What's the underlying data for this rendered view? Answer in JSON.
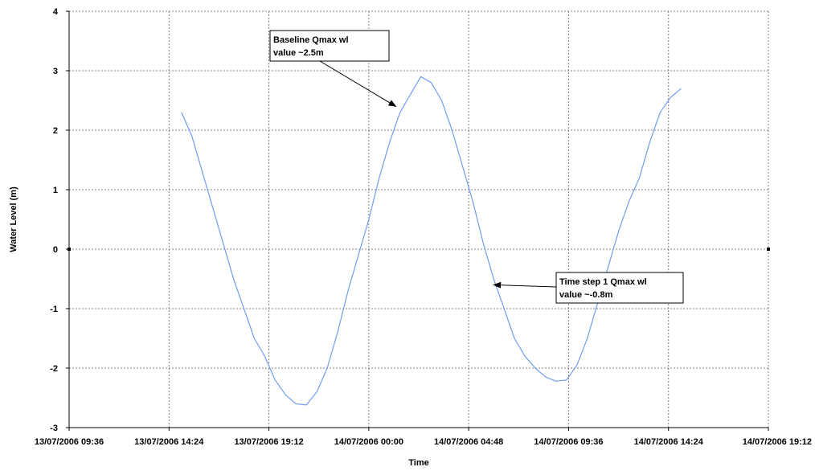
{
  "chart_data": {
    "type": "line",
    "title": "",
    "xlabel": "Time",
    "ylabel": "Water Level (m)",
    "ylim": [
      -3,
      4
    ],
    "yticks": [
      -3,
      -2,
      -1,
      0,
      1,
      2,
      3,
      4
    ],
    "xlim": [
      "13/07/2006 09:36",
      "14/07/2006 19:12"
    ],
    "xticks": [
      "13/07/2006 09:36",
      "13/07/2006 14:24",
      "13/07/2006 19:12",
      "14/07/2006 00:00",
      "14/07/2006 04:48",
      "14/07/2006 09:36",
      "14/07/2006 14:24",
      "14/07/2006 19:12"
    ],
    "grid": true,
    "line_color": "#6f9ef0",
    "series": [
      {
        "x": [
          "13/07/2006 15:00",
          "13/07/2006 15:30",
          "13/07/2006 16:00",
          "13/07/2006 16:30",
          "13/07/2006 17:00",
          "13/07/2006 17:30",
          "13/07/2006 18:00",
          "13/07/2006 18:30",
          "13/07/2006 19:00",
          "13/07/2006 19:30",
          "13/07/2006 20:00",
          "13/07/2006 20:30",
          "13/07/2006 21:00",
          "13/07/2006 21:30",
          "13/07/2006 22:00",
          "13/07/2006 22:30",
          "13/07/2006 23:00",
          "13/07/2006 23:30",
          "14/07/2006 00:00",
          "14/07/2006 00:30",
          "14/07/2006 01:00",
          "14/07/2006 01:30",
          "14/07/2006 02:00",
          "14/07/2006 02:30",
          "14/07/2006 03:00",
          "14/07/2006 03:30",
          "14/07/2006 04:00",
          "14/07/2006 04:30",
          "14/07/2006 05:00",
          "14/07/2006 05:30",
          "14/07/2006 06:00",
          "14/07/2006 06:30",
          "14/07/2006 07:00",
          "14/07/2006 07:30",
          "14/07/2006 08:00",
          "14/07/2006 08:30",
          "14/07/2006 09:00",
          "14/07/2006 09:30",
          "14/07/2006 10:00",
          "14/07/2006 10:30",
          "14/07/2006 11:00",
          "14/07/2006 11:30",
          "14/07/2006 12:00",
          "14/07/2006 12:30",
          "14/07/2006 13:00",
          "14/07/2006 13:30",
          "14/07/2006 14:00",
          "14/07/2006 14:30",
          "14/07/2006 15:00"
        ],
        "values": [
          2.3,
          1.9,
          1.3,
          0.7,
          0.1,
          -0.5,
          -1.0,
          -1.5,
          -1.8,
          -2.2,
          -2.45,
          -2.6,
          -2.62,
          -2.4,
          -2.0,
          -1.4,
          -0.7,
          -0.1,
          0.5,
          1.2,
          1.8,
          2.3,
          2.6,
          2.9,
          2.8,
          2.5,
          2.0,
          1.4,
          0.8,
          0.1,
          -0.5,
          -1.0,
          -1.5,
          -1.8,
          -2.0,
          -2.15,
          -2.22,
          -2.2,
          -1.95,
          -1.5,
          -0.9,
          -0.3,
          0.3,
          0.8,
          1.2,
          1.8,
          2.3,
          2.55,
          2.7
        ]
      }
    ],
    "annotations": [
      {
        "text": [
          "Baseline Qmax wl",
          "value ~2.5m"
        ],
        "target_x": "14/07/2006 01:18",
        "target_y": 2.4
      },
      {
        "text": [
          "Time step 1 Qmax wl",
          "value ~-0.8m"
        ],
        "target_x": "14/07/2006 06:00",
        "target_y": -0.6
      }
    ]
  }
}
